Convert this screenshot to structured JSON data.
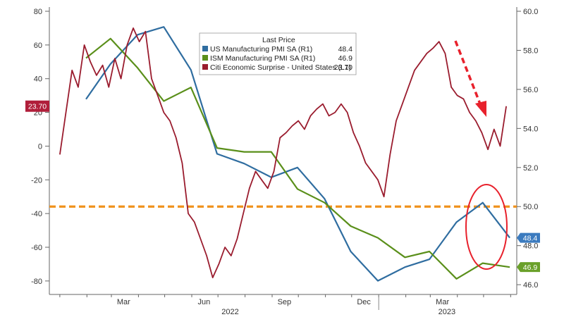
{
  "chart_data": {
    "type": "line",
    "legend": {
      "header": "Last Price",
      "placement": "top-center",
      "entries": [
        {
          "label": "US Manufacturing PMI SA  (R1)",
          "value": "48.4"
        },
        {
          "label": "ISM Manufacturing PMI SA  (R1)",
          "value": "46.9"
        },
        {
          "label": "Citi Economic Surprise - United States  (L1)",
          "value": "23.70"
        }
      ]
    },
    "x_month_labels": [
      "Mar",
      "Jun",
      "Sep",
      "Dec",
      "Mar"
    ],
    "x_year_labels": [
      "2022",
      "2023"
    ],
    "left_axis": {
      "ticks": [
        "80",
        "60",
        "40",
        "20",
        "0",
        "-20",
        "-40",
        "-60",
        "-80"
      ],
      "range": [
        -88,
        80
      ]
    },
    "right_axis": {
      "ticks": [
        "60.0",
        "58.0",
        "56.0",
        "54.0",
        "52.0",
        "50.0",
        "48.0",
        "46.0"
      ],
      "range": [
        45.5,
        60.0
      ]
    },
    "reference_line": {
      "axis": "right",
      "value": 50.0,
      "color": "#f0921c"
    },
    "last_value_tags": {
      "left": "23.70",
      "us_pmi": "48.4",
      "ism_pmi": "46.9"
    },
    "colors": {
      "us_pmi": "#2f6da0",
      "ism_pmi": "#5a8f1a",
      "citi": "#9a1c2e",
      "tag_blue": "#3b7bbf",
      "tag_green": "#6aa02a",
      "tag_red": "#b01e3a",
      "reference": "#f0921c",
      "annotation": "#e8212c"
    },
    "series": [
      {
        "key": "us_pmi",
        "name": "US Manufacturing PMI SA  (R1)",
        "axis": "right",
        "x": [
          "2022-01-31",
          "2022-02-28",
          "2022-03-31",
          "2022-04-30",
          "2022-05-31",
          "2022-06-30",
          "2022-07-31",
          "2022-08-31",
          "2022-09-30",
          "2022-10-31",
          "2022-11-30",
          "2022-12-31",
          "2023-01-31",
          "2023-02-28",
          "2023-03-31",
          "2023-04-30",
          "2023-05-31"
        ],
        "values": [
          55.5,
          57.3,
          58.8,
          59.2,
          57.0,
          52.7,
          52.2,
          51.5,
          52.0,
          50.4,
          47.7,
          46.2,
          46.9,
          47.3,
          49.2,
          50.2,
          48.4
        ]
      },
      {
        "key": "ism_pmi",
        "name": "ISM Manufacturing PMI SA  (R1)",
        "axis": "right",
        "x": [
          "2022-01-31",
          "2022-02-28",
          "2022-03-31",
          "2022-04-30",
          "2022-05-31",
          "2022-06-30",
          "2022-07-31",
          "2022-08-31",
          "2022-09-30",
          "2022-10-31",
          "2022-11-30",
          "2022-12-31",
          "2023-01-31",
          "2023-02-28",
          "2023-03-31",
          "2023-04-30",
          "2023-05-31"
        ],
        "values": [
          57.6,
          58.6,
          57.1,
          55.4,
          56.1,
          53.0,
          52.8,
          52.8,
          50.9,
          50.2,
          49.0,
          48.4,
          47.4,
          47.7,
          46.3,
          47.1,
          46.9
        ]
      },
      {
        "key": "citi",
        "name": "Citi Economic Surprise - United States  (L1)",
        "axis": "left",
        "x": [
          "2022-01-01",
          "2022-01-08",
          "2022-01-15",
          "2022-01-22",
          "2022-01-29",
          "2022-02-05",
          "2022-02-12",
          "2022-02-19",
          "2022-02-26",
          "2022-03-05",
          "2022-03-12",
          "2022-03-19",
          "2022-03-26",
          "2022-04-02",
          "2022-04-09",
          "2022-04-16",
          "2022-04-23",
          "2022-04-30",
          "2022-05-07",
          "2022-05-14",
          "2022-05-21",
          "2022-05-28",
          "2022-06-04",
          "2022-06-11",
          "2022-06-18",
          "2022-06-25",
          "2022-07-02",
          "2022-07-09",
          "2022-07-16",
          "2022-07-23",
          "2022-07-30",
          "2022-08-06",
          "2022-08-13",
          "2022-08-20",
          "2022-08-27",
          "2022-09-03",
          "2022-09-10",
          "2022-09-17",
          "2022-09-24",
          "2022-10-01",
          "2022-10-08",
          "2022-10-15",
          "2022-10-22",
          "2022-10-29",
          "2022-11-05",
          "2022-11-12",
          "2022-11-19",
          "2022-11-26",
          "2022-12-03",
          "2022-12-10",
          "2022-12-17",
          "2022-12-24",
          "2022-12-31",
          "2023-01-07",
          "2023-01-14",
          "2023-01-21",
          "2023-01-28",
          "2023-02-04",
          "2023-02-11",
          "2023-02-18",
          "2023-02-25",
          "2023-03-04",
          "2023-03-11",
          "2023-03-18",
          "2023-03-25",
          "2023-04-01",
          "2023-04-08",
          "2023-04-15",
          "2023-04-22",
          "2023-04-29",
          "2023-05-06",
          "2023-05-13",
          "2023-05-20",
          "2023-05-27"
        ],
        "values": [
          -5,
          20,
          45,
          35,
          60,
          50,
          42,
          48,
          35,
          52,
          40,
          60,
          70,
          62,
          68,
          40,
          30,
          20,
          15,
          5,
          -10,
          -40,
          -45,
          -55,
          -65,
          -78,
          -70,
          -60,
          -65,
          -55,
          -40,
          -25,
          -15,
          -20,
          -25,
          -15,
          5,
          8,
          12,
          15,
          10,
          18,
          22,
          25,
          18,
          20,
          25,
          20,
          8,
          0,
          -10,
          -15,
          -20,
          -30,
          -5,
          15,
          25,
          35,
          45,
          50,
          55,
          58,
          62,
          55,
          35,
          30,
          28,
          20,
          15,
          8,
          -2,
          10,
          0,
          23.7
        ]
      }
    ],
    "annotations": {
      "arrow": "red dashed down arrow",
      "ellipse": "red ellipse around latest PMI readings"
    }
  }
}
